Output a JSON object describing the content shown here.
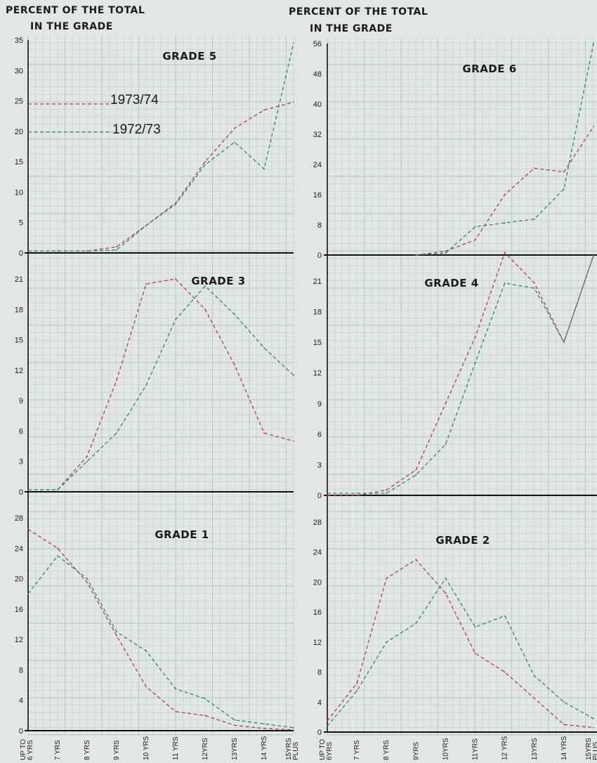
{
  "header": {
    "left_line1": "PERCENT OF THE TOTAL",
    "left_line2": "IN THE GRADE",
    "right_line1": "PERCENT OF THE TOTAL",
    "right_line2": "IN THE GRADE"
  },
  "colors": {
    "s1973": "#b5395a",
    "s1972": "#2f8a50",
    "grid": "#a9c7c6",
    "axis": "#111111"
  },
  "legend": {
    "s1973_label": "1973/74",
    "s1972_label": "1972/73"
  },
  "chart_data": [
    {
      "id": "g5",
      "type": "line",
      "title": "GRADE 5",
      "yticks": [
        "0",
        "5",
        "10",
        "15",
        "20",
        "25",
        "30",
        "35"
      ],
      "ylim": [
        0,
        35
      ],
      "xticks": [],
      "xlabel": "",
      "ylabel": "",
      "x": [
        0,
        1,
        2,
        3,
        4,
        5,
        6,
        7,
        8,
        9
      ],
      "series": [
        {
          "name": "1973/74",
          "values": [
            0.3,
            0.3,
            0.3,
            1,
            4.5,
            8.2,
            15,
            20.5,
            23.5,
            24.8
          ]
        },
        {
          "name": "1972/73",
          "values": [
            0.3,
            0.3,
            0.3,
            0.5,
            4.5,
            8,
            14.5,
            18.2,
            13.8,
            34.5
          ]
        }
      ]
    },
    {
      "id": "g6",
      "type": "line",
      "title": "GRADE 6",
      "yticks": [
        "0",
        "8",
        "16",
        "24",
        "32",
        "40",
        "48",
        "56"
      ],
      "ylim": [
        0,
        56
      ],
      "xticks": [],
      "xlabel": "",
      "ylabel": "",
      "x": [
        3,
        4,
        5,
        6,
        7,
        8,
        9
      ],
      "series": [
        {
          "name": "1973/74",
          "values": [
            0,
            1,
            4,
            16,
            23,
            22,
            34
          ]
        },
        {
          "name": "1972/73",
          "values": [
            0,
            0.5,
            7.5,
            8.5,
            9.5,
            17.5,
            56
          ]
        }
      ]
    },
    {
      "id": "g3",
      "type": "line",
      "title": "GRADE 3",
      "yticks": [
        "0",
        "3",
        "6",
        "9",
        "12",
        "15",
        "18",
        "21"
      ],
      "ylim": [
        0,
        22
      ],
      "xticks": [],
      "xlabel": "",
      "ylabel": "",
      "x": [
        0,
        1,
        2,
        3,
        4,
        5,
        6,
        7,
        8,
        9
      ],
      "series": [
        {
          "name": "1973/74",
          "values": [
            0.2,
            0.2,
            3.5,
            11,
            20.5,
            21,
            18,
            12.5,
            5.8,
            5
          ]
        },
        {
          "name": "1972/73",
          "values": [
            0.2,
            0.2,
            3,
            5.8,
            10.5,
            17,
            20.3,
            17.5,
            14.2,
            11.5
          ]
        }
      ]
    },
    {
      "id": "g4",
      "type": "line",
      "title": "GRADE 4",
      "yticks": [
        "0",
        "3",
        "6",
        "9",
        "12",
        "15",
        "18",
        "21"
      ],
      "ylim": [
        0,
        24
      ],
      "xticks": [],
      "xlabel": "",
      "ylabel": "",
      "x": [
        0,
        1,
        2,
        3,
        4,
        5,
        6,
        7,
        8,
        9
      ],
      "series": [
        {
          "name": "1973/74",
          "values": [
            0,
            0,
            0.5,
            2.5,
            9,
            15.5,
            23.8,
            20.8,
            15,
            23.5
          ]
        },
        {
          "name": "1972/73",
          "values": [
            0.2,
            0.2,
            0.2,
            2,
            5,
            13,
            20.8,
            20.3,
            15,
            23.5
          ]
        }
      ]
    },
    {
      "id": "g1",
      "type": "line",
      "title": "GRADE 1",
      "yticks": [
        "0",
        "4",
        "8",
        "12",
        "16",
        "20",
        "24",
        "28"
      ],
      "ylim": [
        0,
        30
      ],
      "xticks": [
        "UP TO|6 YRS",
        "7 YRS",
        "8 YRS",
        "9 YRS",
        "10 YRS",
        "11 YRS",
        "12YRS",
        "13YRS",
        "14 YRS",
        "15YRS|PLUS"
      ],
      "xlabel": "",
      "ylabel": "",
      "x": [
        0,
        1,
        2,
        3,
        4,
        5,
        6,
        7,
        8,
        9
      ],
      "series": [
        {
          "name": "1973/74",
          "values": [
            26.5,
            24,
            19.5,
            12.5,
            5.8,
            2.5,
            2,
            0.7,
            0.3,
            0.1
          ]
        },
        {
          "name": "1972/73",
          "values": [
            18,
            23,
            20,
            13,
            10.5,
            5.5,
            4.2,
            1.4,
            0.9,
            0.4
          ]
        }
      ]
    },
    {
      "id": "g2",
      "type": "line",
      "title": "GRADE 2",
      "yticks": [
        "0",
        "4",
        "8",
        "12",
        "16",
        "20",
        "24",
        "28"
      ],
      "ylim": [
        0,
        31
      ],
      "xticks": [
        "UP TO|6YRS",
        "7 YRS",
        "8 YRS",
        "9YRS",
        "10YRS",
        "11YRS",
        "12 YRS",
        "13YRS",
        "14 YRS",
        "15YRS|PLUS"
      ],
      "xlabel": "",
      "ylabel": "",
      "x": [
        0,
        1,
        2,
        3,
        4,
        5,
        6,
        7,
        8,
        9
      ],
      "series": [
        {
          "name": "1973/74",
          "values": [
            1.5,
            6.5,
            20.5,
            23,
            18.5,
            10.5,
            8,
            4.5,
            1,
            0.6
          ]
        },
        {
          "name": "1972/73",
          "values": [
            0.8,
            5.5,
            12,
            14.5,
            20.5,
            14,
            15.5,
            7.5,
            4,
            1.8
          ]
        }
      ]
    }
  ]
}
